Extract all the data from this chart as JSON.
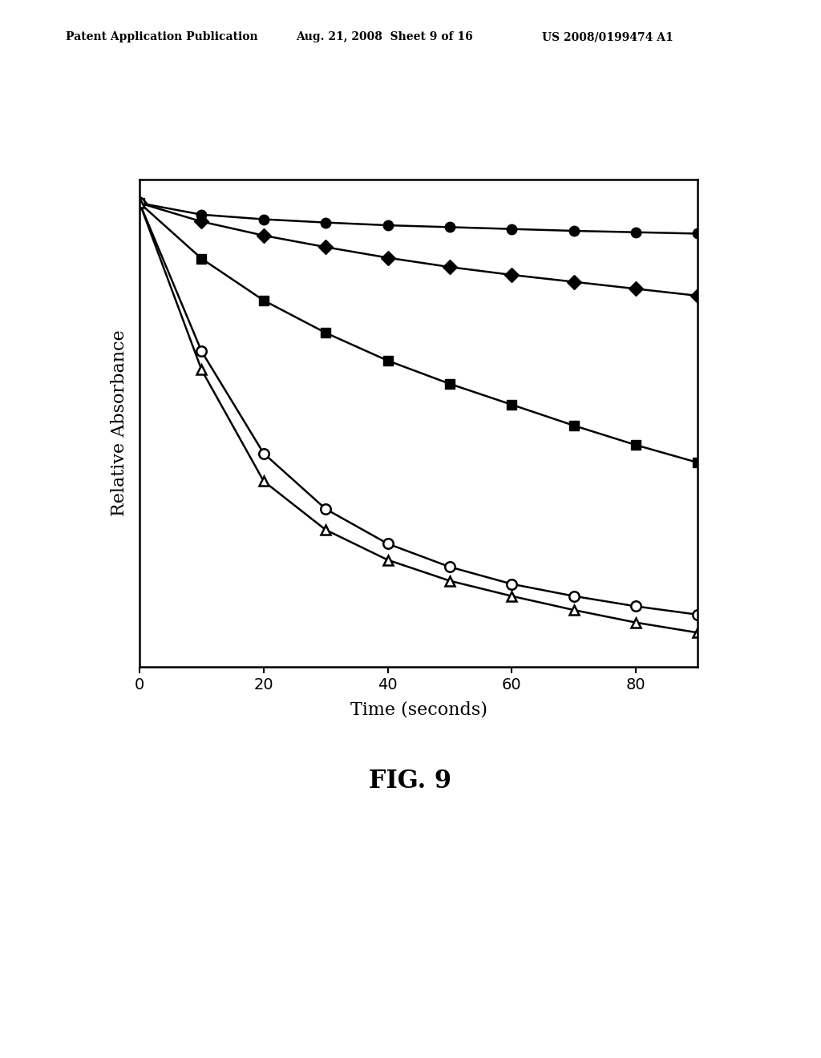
{
  "title": "FIG. 9",
  "xlabel": "Time (seconds)",
  "ylabel": "Relative Absorbance",
  "header_left": "Patent Application Publication",
  "header_mid": "Aug. 21, 2008  Sheet 9 of 16",
  "header_right": "US 2008/0199474 A1",
  "xlim": [
    0,
    90
  ],
  "ylim": [
    0,
    1.05
  ],
  "xticks": [
    0,
    20,
    40,
    60,
    80
  ],
  "series": [
    {
      "label": "filled_circle",
      "x": [
        0,
        10,
        20,
        30,
        40,
        50,
        60,
        70,
        80,
        90
      ],
      "y": [
        1.0,
        0.975,
        0.965,
        0.958,
        0.952,
        0.948,
        0.944,
        0.94,
        0.937,
        0.934
      ],
      "color": "#000000",
      "marker": "o",
      "filled": true,
      "markersize": 9,
      "linewidth": 1.8
    },
    {
      "label": "filled_diamond",
      "x": [
        0,
        10,
        20,
        30,
        40,
        50,
        60,
        70,
        80,
        90
      ],
      "y": [
        1.0,
        0.96,
        0.93,
        0.905,
        0.882,
        0.862,
        0.845,
        0.83,
        0.815,
        0.8
      ],
      "color": "#000000",
      "marker": "D",
      "filled": true,
      "markersize": 9,
      "linewidth": 1.8
    },
    {
      "label": "filled_square",
      "x": [
        0,
        10,
        20,
        30,
        40,
        50,
        60,
        70,
        80,
        90
      ],
      "y": [
        1.0,
        0.88,
        0.79,
        0.72,
        0.66,
        0.61,
        0.565,
        0.52,
        0.478,
        0.44
      ],
      "color": "#000000",
      "marker": "s",
      "filled": true,
      "markersize": 9,
      "linewidth": 1.8
    },
    {
      "label": "open_circle",
      "x": [
        0,
        10,
        20,
        30,
        40,
        50,
        60,
        70,
        80,
        90
      ],
      "y": [
        1.0,
        0.68,
        0.46,
        0.34,
        0.265,
        0.215,
        0.178,
        0.152,
        0.13,
        0.112
      ],
      "color": "#000000",
      "marker": "o",
      "filled": false,
      "markersize": 9,
      "linewidth": 1.8
    },
    {
      "label": "open_triangle",
      "x": [
        0,
        10,
        20,
        30,
        40,
        50,
        60,
        70,
        80,
        90
      ],
      "y": [
        1.0,
        0.64,
        0.4,
        0.295,
        0.23,
        0.185,
        0.152,
        0.122,
        0.095,
        0.073
      ],
      "color": "#000000",
      "marker": "^",
      "filled": false,
      "markersize": 9,
      "linewidth": 1.8
    }
  ],
  "background_color": "#ffffff",
  "plot_background": "#ffffff",
  "title_fontsize": 22,
  "axis_label_fontsize": 16,
  "tick_fontsize": 14,
  "header_fontsize": 10
}
